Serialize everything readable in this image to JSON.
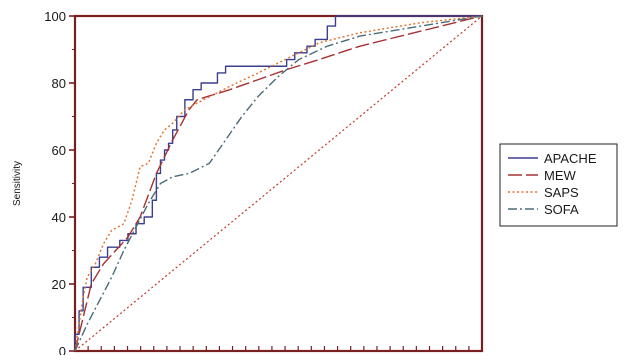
{
  "chart_data": {
    "type": "line",
    "ylabel": "Sensitivity",
    "xlabel": "",
    "title": "",
    "xlim": [
      0,
      100
    ],
    "ylim": [
      0,
      100
    ],
    "yticks": [
      "0",
      "20",
      "40",
      "60",
      "80",
      "100"
    ],
    "x_minor_tick_count": 30,
    "grid": false,
    "legend_position": "right",
    "reference_line": {
      "color": "#c0392b",
      "dash": "dotted",
      "points": [
        [
          0,
          0
        ],
        [
          100,
          100
        ]
      ]
    },
    "series": [
      {
        "name": "APACHE",
        "color": "#3a3f8f",
        "dash": "solid",
        "points": [
          [
            0,
            0
          ],
          [
            0,
            5
          ],
          [
            1,
            5
          ],
          [
            1,
            12
          ],
          [
            2,
            12
          ],
          [
            2,
            19
          ],
          [
            4,
            19
          ],
          [
            4,
            25
          ],
          [
            6,
            25
          ],
          [
            6,
            28
          ],
          [
            8,
            28
          ],
          [
            8,
            31
          ],
          [
            11,
            31
          ],
          [
            11,
            33
          ],
          [
            13,
            33
          ],
          [
            13,
            35
          ],
          [
            15,
            35
          ],
          [
            15,
            38
          ],
          [
            17,
            38
          ],
          [
            17,
            40
          ],
          [
            19,
            40
          ],
          [
            19,
            45
          ],
          [
            20,
            45
          ],
          [
            20,
            53
          ],
          [
            21,
            53
          ],
          [
            21,
            57
          ],
          [
            22,
            57
          ],
          [
            22,
            60
          ],
          [
            23,
            60
          ],
          [
            23,
            62
          ],
          [
            24,
            62
          ],
          [
            24,
            66
          ],
          [
            25,
            66
          ],
          [
            25,
            70
          ],
          [
            27,
            70
          ],
          [
            27,
            75
          ],
          [
            29,
            75
          ],
          [
            29,
            78
          ],
          [
            31,
            78
          ],
          [
            31,
            80
          ],
          [
            35,
            80
          ],
          [
            35,
            83
          ],
          [
            37,
            83
          ],
          [
            37,
            85
          ],
          [
            52,
            85
          ],
          [
            52,
            87
          ],
          [
            54,
            87
          ],
          [
            54,
            89
          ],
          [
            57,
            89
          ],
          [
            57,
            91
          ],
          [
            59,
            91
          ],
          [
            59,
            93
          ],
          [
            62,
            93
          ],
          [
            62,
            97
          ],
          [
            64,
            97
          ],
          [
            64,
            100
          ],
          [
            100,
            100
          ]
        ]
      },
      {
        "name": "MEW",
        "color": "#a83232",
        "dash": "longdash",
        "points": [
          [
            0,
            0
          ],
          [
            2,
            10
          ],
          [
            4,
            20
          ],
          [
            7,
            26
          ],
          [
            10,
            30
          ],
          [
            13,
            34
          ],
          [
            16,
            40
          ],
          [
            20,
            53
          ],
          [
            24,
            63
          ],
          [
            28,
            72
          ],
          [
            30,
            75
          ],
          [
            38,
            78
          ],
          [
            45,
            81
          ],
          [
            52,
            84
          ],
          [
            60,
            87
          ],
          [
            70,
            91
          ],
          [
            80,
            94
          ],
          [
            90,
            97
          ],
          [
            100,
            100
          ]
        ]
      },
      {
        "name": "SAPS",
        "color": "#e0702a",
        "dash": "dotted",
        "points": [
          [
            0,
            0
          ],
          [
            1,
            8
          ],
          [
            2,
            16
          ],
          [
            3,
            22
          ],
          [
            5,
            26
          ],
          [
            7,
            32
          ],
          [
            9,
            36
          ],
          [
            12,
            38
          ],
          [
            14,
            45
          ],
          [
            16,
            55
          ],
          [
            18,
            56
          ],
          [
            20,
            62
          ],
          [
            22,
            66
          ],
          [
            24,
            68
          ],
          [
            27,
            72
          ],
          [
            30,
            74
          ],
          [
            38,
            79
          ],
          [
            45,
            83
          ],
          [
            50,
            86
          ],
          [
            55,
            89
          ],
          [
            60,
            92
          ],
          [
            70,
            95
          ],
          [
            85,
            98
          ],
          [
            100,
            100
          ]
        ]
      },
      {
        "name": "SOFA",
        "color": "#4a6b78",
        "dash": "dashdot",
        "points": [
          [
            0,
            0
          ],
          [
            3,
            8
          ],
          [
            6,
            15
          ],
          [
            9,
            22
          ],
          [
            12,
            30
          ],
          [
            15,
            37
          ],
          [
            18,
            44
          ],
          [
            21,
            50
          ],
          [
            24,
            52
          ],
          [
            28,
            53
          ],
          [
            33,
            56
          ],
          [
            37,
            63
          ],
          [
            41,
            70
          ],
          [
            45,
            76
          ],
          [
            50,
            82
          ],
          [
            55,
            87
          ],
          [
            62,
            91
          ],
          [
            70,
            94
          ],
          [
            80,
            96
          ],
          [
            90,
            98
          ],
          [
            100,
            100
          ]
        ]
      }
    ]
  }
}
